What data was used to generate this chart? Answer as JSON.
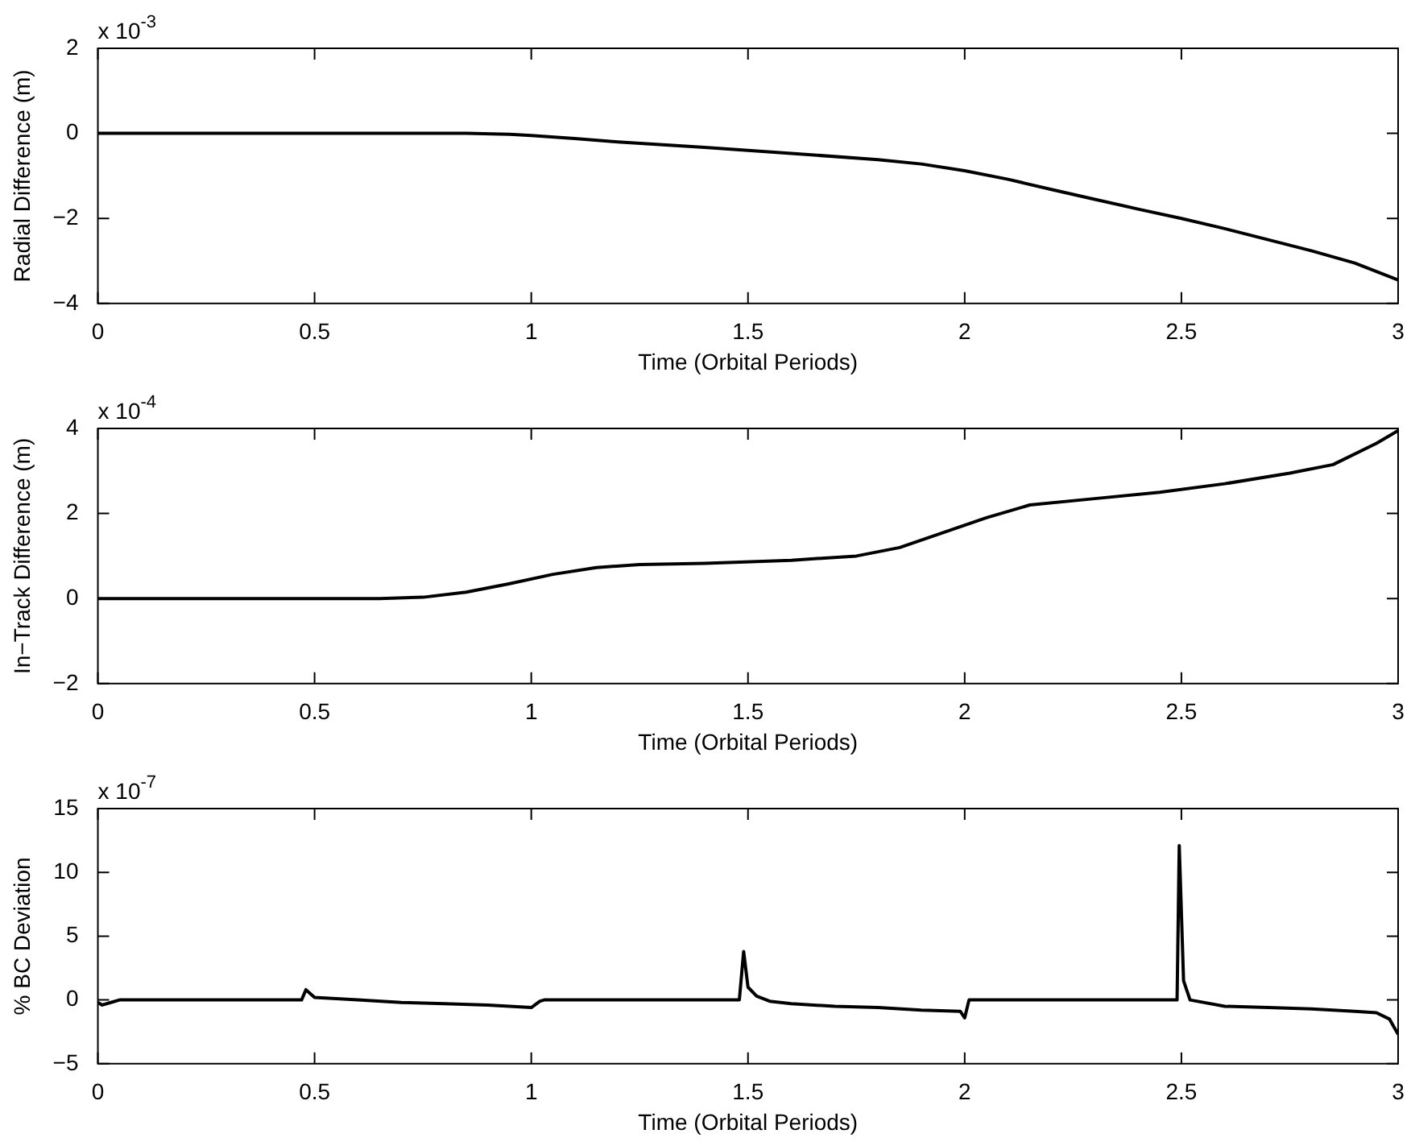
{
  "chart_data": [
    {
      "type": "line",
      "ylabel": "Radial Difference (m)",
      "xlabel": "Time (Orbital Periods)",
      "annotations": [
        "x 10$^{-3}$"
      ],
      "grid": false,
      "legend": false,
      "marker": "none",
      "line_style": "solid",
      "xlim": [
        0,
        3
      ],
      "xticks": [
        0,
        0.5,
        1,
        1.5,
        2,
        2.5,
        3
      ],
      "ylim": [
        -4,
        2
      ],
      "yticks": [
        -4,
        -2,
        0,
        2
      ],
      "series": [
        {
          "color": "#000000",
          "x": [
            0,
            0.5,
            0.85,
            0.95,
            1.0,
            1.1,
            1.2,
            1.4,
            1.6,
            1.8,
            1.9,
            2.0,
            2.1,
            2.2,
            2.3,
            2.4,
            2.5,
            2.6,
            2.7,
            2.8,
            2.9,
            3.0
          ],
          "values": [
            0,
            0,
            0,
            -0.02,
            -0.05,
            -0.12,
            -0.2,
            -0.33,
            -0.47,
            -0.62,
            -0.72,
            -0.88,
            -1.08,
            -1.32,
            -1.55,
            -1.78,
            -2.0,
            -2.24,
            -2.5,
            -2.76,
            -3.05,
            -3.45
          ]
        }
      ]
    },
    {
      "type": "line",
      "ylabel": "In−Track Difference (m)",
      "xlabel": "Time (Orbital Periods)",
      "annotations": [
        "x 10$^{-4}$"
      ],
      "grid": false,
      "legend": false,
      "marker": "none",
      "line_style": "solid",
      "xlim": [
        0,
        3
      ],
      "xticks": [
        0,
        0.5,
        1,
        1.5,
        2,
        2.5,
        3
      ],
      "ylim": [
        -2,
        4
      ],
      "yticks": [
        -2,
        0,
        2,
        4
      ],
      "series": [
        {
          "color": "#000000",
          "x": [
            0,
            0.65,
            0.75,
            0.85,
            0.95,
            1.05,
            1.15,
            1.25,
            1.4,
            1.6,
            1.75,
            1.85,
            1.95,
            2.05,
            2.15,
            2.3,
            2.45,
            2.6,
            2.75,
            2.85,
            2.95,
            3.0
          ],
          "values": [
            0,
            0,
            0.03,
            0.15,
            0.35,
            0.57,
            0.73,
            0.8,
            0.83,
            0.9,
            1.0,
            1.2,
            1.55,
            1.9,
            2.2,
            2.35,
            2.5,
            2.7,
            2.95,
            3.15,
            3.65,
            3.95
          ]
        }
      ]
    },
    {
      "type": "line",
      "ylabel": "% BC Deviation",
      "xlabel": "Time (Orbital Periods)",
      "annotations": [
        "x 10$^{-7}$"
      ],
      "grid": false,
      "legend": false,
      "marker": "none",
      "line_style": "solid",
      "xlim": [
        0,
        3
      ],
      "xticks": [
        0,
        0.5,
        1,
        1.5,
        2,
        2.5,
        3
      ],
      "ylim": [
        -5,
        15
      ],
      "yticks": [
        -5,
        0,
        5,
        10,
        15
      ],
      "series": [
        {
          "color": "#000000",
          "x": [
            0,
            0.01,
            0.03,
            0.05,
            0.47,
            0.48,
            0.5,
            0.55,
            0.6,
            0.7,
            0.8,
            0.9,
            0.95,
            1.0,
            1.02,
            1.03,
            1.48,
            1.49,
            1.5,
            1.52,
            1.55,
            1.6,
            1.7,
            1.8,
            1.9,
            1.99,
            2.0,
            2.01,
            2.49,
            2.495,
            2.505,
            2.52,
            2.6,
            2.7,
            2.8,
            2.9,
            2.95,
            2.98,
            3.0
          ],
          "values": [
            -0.2,
            -0.4,
            -0.2,
            0,
            0,
            0.8,
            0.2,
            0.1,
            0,
            -0.2,
            -0.3,
            -0.4,
            -0.5,
            -0.6,
            -0.1,
            0,
            0,
            3.8,
            1.0,
            0.3,
            -0.1,
            -0.3,
            -0.5,
            -0.6,
            -0.8,
            -0.9,
            -1.4,
            0,
            0,
            12.1,
            1.5,
            0,
            -0.5,
            -0.6,
            -0.7,
            -0.9,
            -1.0,
            -1.5,
            -2.7
          ]
        }
      ]
    }
  ]
}
